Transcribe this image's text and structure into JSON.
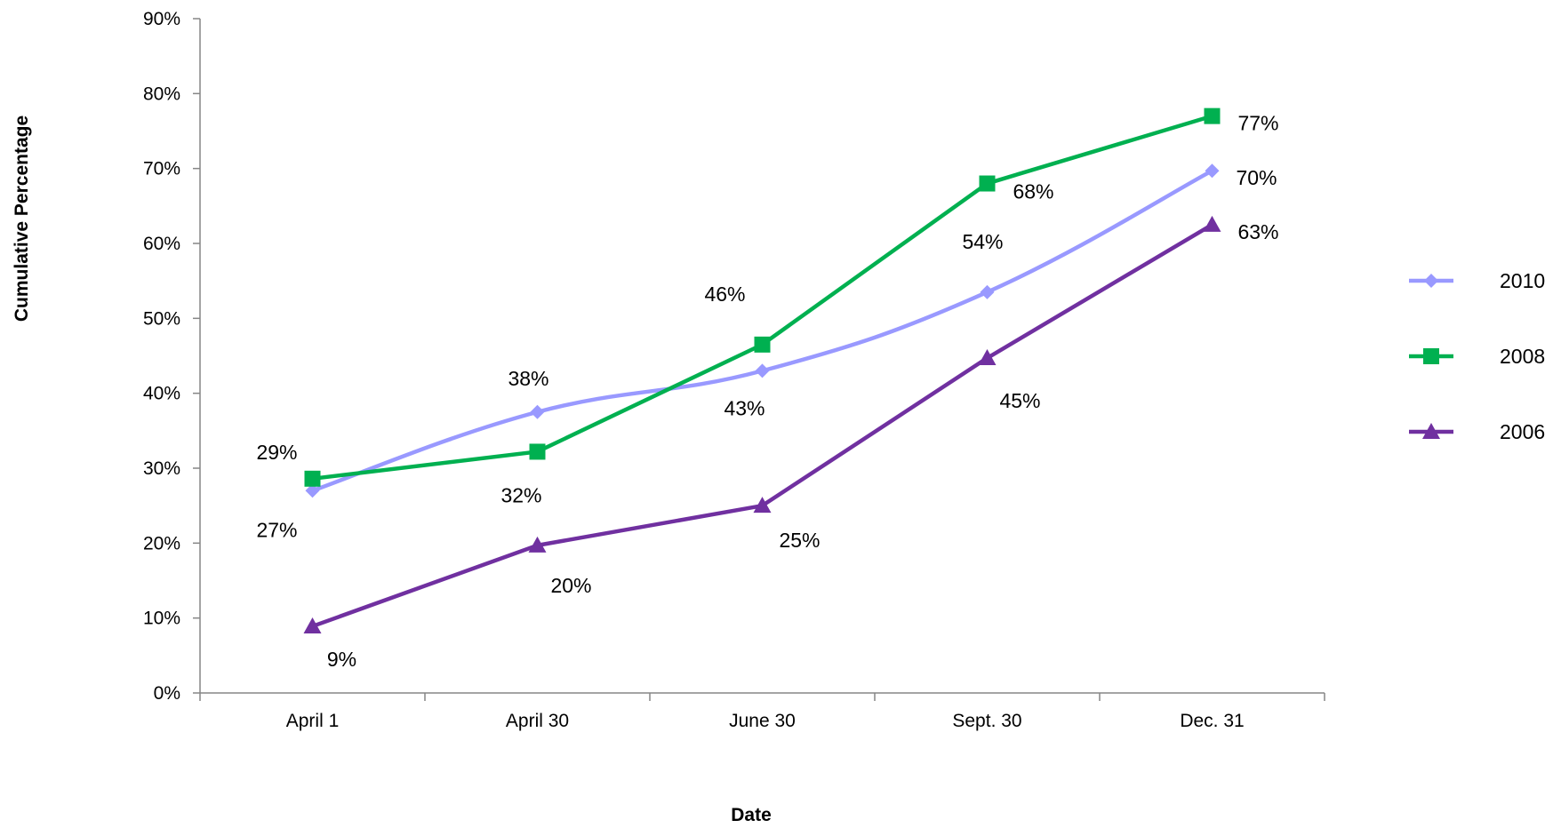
{
  "chart_data": {
    "type": "line",
    "categories": [
      "April 1",
      "April 30",
      "June 30",
      "Sept. 30",
      "Dec. 31"
    ],
    "series": [
      {
        "name": "2010",
        "values": [
          27,
          37.5,
          43,
          53.5,
          69.7
        ],
        "data_labels": [
          "27%",
          "38%",
          "43%",
          "54%",
          "70%"
        ],
        "color": "#9999ff",
        "marker": "diamond",
        "smooth": true
      },
      {
        "name": "2008",
        "values": [
          28.6,
          32.2,
          46.5,
          68,
          77
        ],
        "data_labels": [
          "29%",
          "32%",
          "46%",
          "68%",
          "77%"
        ],
        "color": "#00b050",
        "marker": "square",
        "smooth": false
      },
      {
        "name": "2006",
        "values": [
          8.9,
          19.7,
          25,
          44.7,
          62.5
        ],
        "data_labels": [
          "9%",
          "20%",
          "25%",
          "45%",
          "63%"
        ],
        "color": "#7030a0",
        "marker": "triangle",
        "smooth": false
      }
    ],
    "ylim": [
      0,
      90
    ],
    "y_ticks": [
      0,
      10,
      20,
      30,
      40,
      50,
      60,
      70,
      80,
      90
    ],
    "y_tick_labels": [
      "0%",
      "10%",
      "20%",
      "30%",
      "40%",
      "50%",
      "60%",
      "70%",
      "80%",
      "90%"
    ],
    "xlabel": "Date",
    "ylabel": "Cumulative Percentage",
    "grid": false,
    "legend_position": "right"
  }
}
